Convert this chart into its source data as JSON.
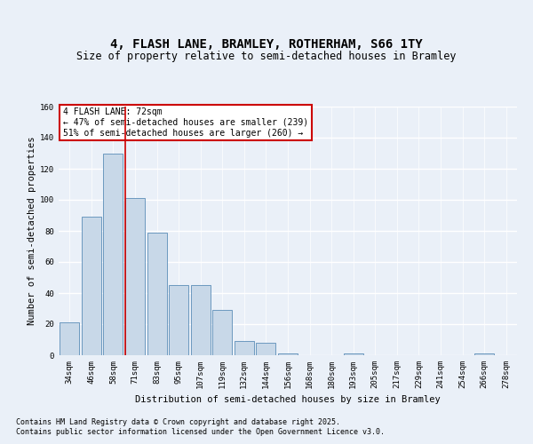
{
  "title1": "4, FLASH LANE, BRAMLEY, ROTHERHAM, S66 1TY",
  "title2": "Size of property relative to semi-detached houses in Bramley",
  "xlabel": "Distribution of semi-detached houses by size in Bramley",
  "ylabel": "Number of semi-detached properties",
  "categories": [
    "34sqm",
    "46sqm",
    "58sqm",
    "71sqm",
    "83sqm",
    "95sqm",
    "107sqm",
    "119sqm",
    "132sqm",
    "144sqm",
    "156sqm",
    "168sqm",
    "180sqm",
    "193sqm",
    "205sqm",
    "217sqm",
    "229sqm",
    "241sqm",
    "254sqm",
    "266sqm",
    "278sqm"
  ],
  "values": [
    21,
    89,
    130,
    101,
    79,
    45,
    45,
    29,
    9,
    8,
    1,
    0,
    0,
    1,
    0,
    0,
    0,
    0,
    0,
    1,
    0
  ],
  "bar_color": "#c8d8e8",
  "bar_edge_color": "#5b8db8",
  "highlight_bin_index": 3,
  "annotation_title": "4 FLASH LANE: 72sqm",
  "annotation_line1": "← 47% of semi-detached houses are smaller (239)",
  "annotation_line2": "51% of semi-detached houses are larger (260) →",
  "annotation_box_color": "#ffffff",
  "annotation_box_edge": "#cc0000",
  "ylim": [
    0,
    160
  ],
  "yticks": [
    0,
    20,
    40,
    60,
    80,
    100,
    120,
    140,
    160
  ],
  "footnote1": "Contains HM Land Registry data © Crown copyright and database right 2025.",
  "footnote2": "Contains public sector information licensed under the Open Government Licence v3.0.",
  "bg_color": "#eaf0f8",
  "plot_bg_color": "#eaf0f8",
  "grid_color": "#ffffff",
  "title1_fontsize": 10,
  "title2_fontsize": 8.5,
  "axis_label_fontsize": 7.5,
  "tick_fontsize": 6.5,
  "annotation_fontsize": 7,
  "footnote_fontsize": 6
}
